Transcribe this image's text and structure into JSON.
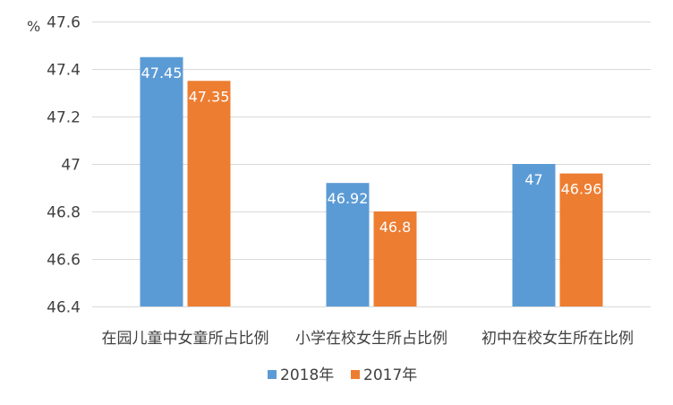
{
  "chart_data": {
    "type": "bar",
    "unit_label": "%",
    "categories": [
      "在园儿童中女童所占比例",
      "小学在校女生所占比例",
      "初中在校女生所在比例"
    ],
    "series": [
      {
        "name": "2018年",
        "values": [
          47.45,
          46.92,
          47
        ],
        "labels": [
          "47.45",
          "46.92",
          "47"
        ],
        "color": "#5b9bd5"
      },
      {
        "name": "2017年",
        "values": [
          47.35,
          46.8,
          46.96
        ],
        "labels": [
          "47.35",
          "46.8",
          "46.96"
        ],
        "color": "#ed7d31"
      }
    ],
    "ylim": [
      46.4,
      47.6
    ],
    "yticks": [
      46.4,
      46.6,
      46.8,
      47,
      47.2,
      47.4,
      47.6
    ],
    "ytick_labels": [
      "46.4",
      "46.6",
      "46.8",
      "47",
      "47.2",
      "47.4",
      "47.6"
    ],
    "grid": true,
    "legend_position": "bottom"
  }
}
